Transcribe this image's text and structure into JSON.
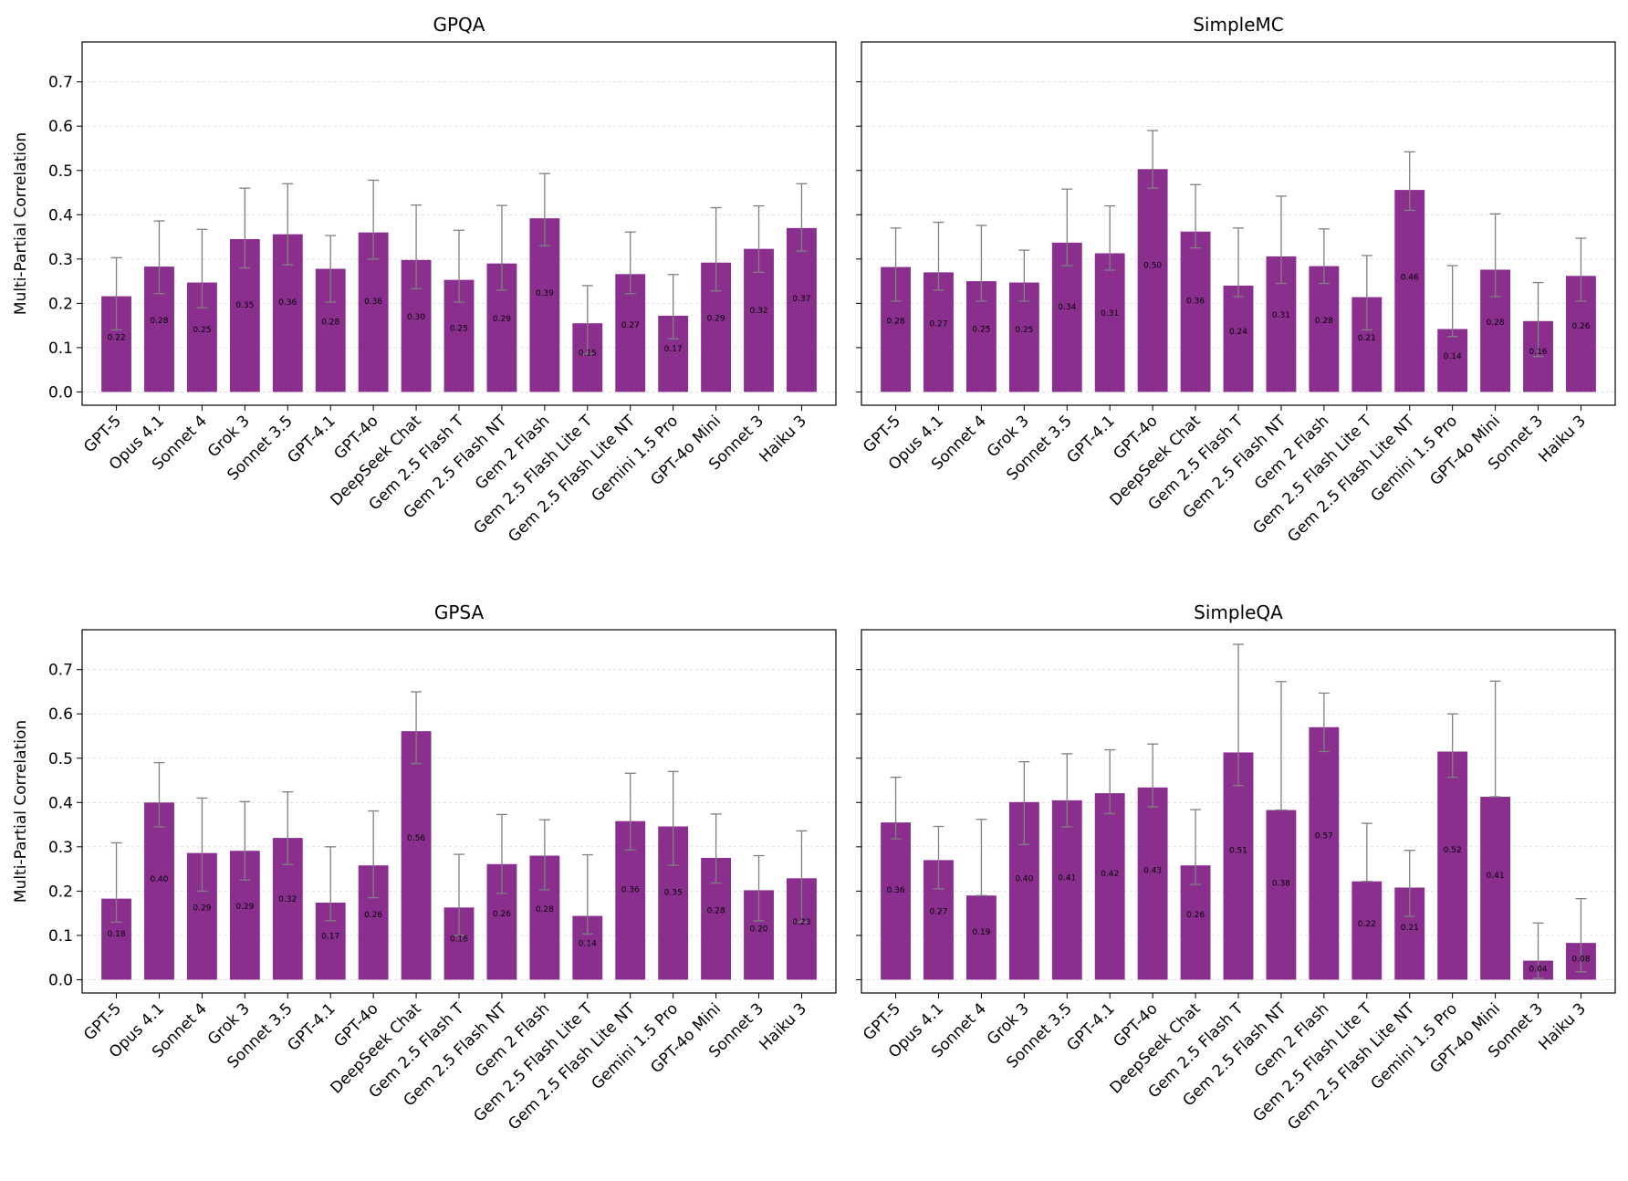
{
  "figure": {
    "shared_ylabel": "Multi-Partial Correlation",
    "bar_color": "#8b2f8f",
    "error_color": "#808080",
    "grid_color": "#d9d9d9"
  },
  "chart_data": [
    {
      "type": "bar",
      "title": "GPQA",
      "ylabel": "Multi-Partial Correlation",
      "xlabel": "",
      "ylim": [
        -0.03,
        0.79
      ],
      "yticks": [
        "0.0",
        "0.1",
        "0.2",
        "0.3",
        "0.4",
        "0.5",
        "0.6",
        "0.7"
      ],
      "grid": true,
      "categories": [
        "GPT-5",
        "Opus 4.1",
        "Sonnet 4",
        "Grok 3",
        "Sonnet 3.5",
        "GPT-4.1",
        "GPT-4o",
        "DeepSeek Chat",
        "Gem 2.5 Flash T",
        "Gem 2.5 Flash NT",
        "Gem 2 Flash",
        "Gem 2.5 Flash Lite T",
        "Gem 2.5 Flash Lite NT",
        "Gemini 1.5 Pro",
        "GPT-4o Mini",
        "Sonnet 3",
        "Haiku 3"
      ],
      "values": [
        0.216,
        0.283,
        0.247,
        0.345,
        0.356,
        0.278,
        0.36,
        0.298,
        0.253,
        0.29,
        0.392,
        0.155,
        0.266,
        0.172,
        0.292,
        0.323,
        0.37
      ],
      "labels": [
        "0.22",
        "0.28",
        "0.25",
        "0.35",
        "0.36",
        "0.28",
        "0.36",
        "0.30",
        "0.25",
        "0.29",
        "0.39",
        "0.15",
        "0.27",
        "0.17",
        "0.29",
        "0.32",
        "0.37"
      ],
      "err_low": [
        0.14,
        0.222,
        0.19,
        0.28,
        0.287,
        0.203,
        0.3,
        0.233,
        0.203,
        0.23,
        0.33,
        0.085,
        0.222,
        0.12,
        0.228,
        0.27,
        0.318
      ],
      "err_high": [
        0.303,
        0.386,
        0.367,
        0.46,
        0.47,
        0.353,
        0.478,
        0.422,
        0.365,
        0.421,
        0.493,
        0.24,
        0.361,
        0.265,
        0.416,
        0.42,
        0.47
      ]
    },
    {
      "type": "bar",
      "title": "SimpleMC",
      "ylabel": "",
      "xlabel": "",
      "ylim": [
        -0.03,
        0.79
      ],
      "yticks": [
        "0.0",
        "0.1",
        "0.2",
        "0.3",
        "0.4",
        "0.5",
        "0.6",
        "0.7"
      ],
      "grid": true,
      "categories": [
        "GPT-5",
        "Opus 4.1",
        "Sonnet 4",
        "Grok 3",
        "Sonnet 3.5",
        "GPT-4.1",
        "GPT-4o",
        "DeepSeek Chat",
        "Gem 2.5 Flash T",
        "Gem 2.5 Flash NT",
        "Gem 2 Flash",
        "Gem 2.5 Flash Lite T",
        "Gem 2.5 Flash Lite NT",
        "Gemini 1.5 Pro",
        "GPT-4o Mini",
        "Sonnet 3",
        "Haiku 3"
      ],
      "values": [
        0.282,
        0.27,
        0.25,
        0.247,
        0.337,
        0.313,
        0.503,
        0.362,
        0.24,
        0.306,
        0.284,
        0.214,
        0.456,
        0.142,
        0.276,
        0.16,
        0.262
      ],
      "labels": [
        "0.28",
        "0.27",
        "0.25",
        "0.25",
        "0.34",
        "0.31",
        "0.50",
        "0.36",
        "0.24",
        "0.31",
        "0.28",
        "0.21",
        "0.46",
        "0.14",
        "0.28",
        "0.16",
        "0.26"
      ],
      "err_low": [
        0.205,
        0.23,
        0.205,
        0.205,
        0.285,
        0.275,
        0.46,
        0.325,
        0.215,
        0.245,
        0.245,
        0.14,
        0.41,
        0.125,
        0.215,
        0.08,
        0.205
      ],
      "err_high": [
        0.37,
        0.383,
        0.376,
        0.32,
        0.458,
        0.42,
        0.59,
        0.468,
        0.37,
        0.442,
        0.368,
        0.308,
        0.542,
        0.285,
        0.402,
        0.247,
        0.347
      ]
    },
    {
      "type": "bar",
      "title": "GPSA",
      "ylabel": "Multi-Partial Correlation",
      "xlabel": "",
      "ylim": [
        -0.03,
        0.79
      ],
      "yticks": [
        "0.0",
        "0.1",
        "0.2",
        "0.3",
        "0.4",
        "0.5",
        "0.6",
        "0.7"
      ],
      "grid": true,
      "categories": [
        "GPT-5",
        "Opus 4.1",
        "Sonnet 4",
        "Grok 3",
        "Sonnet 3.5",
        "GPT-4.1",
        "GPT-4o",
        "DeepSeek Chat",
        "Gem 2.5 Flash T",
        "Gem 2.5 Flash NT",
        "Gem 2 Flash",
        "Gem 2.5 Flash Lite T",
        "Gem 2.5 Flash Lite NT",
        "Gemini 1.5 Pro",
        "GPT-4o Mini",
        "Sonnet 3",
        "Haiku 3"
      ],
      "values": [
        0.183,
        0.4,
        0.286,
        0.291,
        0.32,
        0.174,
        0.258,
        0.561,
        0.163,
        0.261,
        0.28,
        0.144,
        0.358,
        0.346,
        0.275,
        0.202,
        0.229
      ],
      "labels": [
        "0.18",
        "0.40",
        "0.29",
        "0.29",
        "0.32",
        "0.17",
        "0.26",
        "0.56",
        "0.16",
        "0.26",
        "0.28",
        "0.14",
        "0.36",
        "0.35",
        "0.28",
        "0.20",
        "0.23"
      ],
      "err_low": [
        0.13,
        0.345,
        0.2,
        0.225,
        0.26,
        0.133,
        0.185,
        0.488,
        0.1,
        0.195,
        0.203,
        0.103,
        0.293,
        0.258,
        0.218,
        0.133,
        0.13
      ],
      "err_high": [
        0.309,
        0.49,
        0.41,
        0.402,
        0.424,
        0.3,
        0.381,
        0.65,
        0.283,
        0.373,
        0.361,
        0.282,
        0.466,
        0.47,
        0.374,
        0.28,
        0.336
      ]
    },
    {
      "type": "bar",
      "title": "SimpleQA",
      "ylabel": "",
      "xlabel": "",
      "ylim": [
        -0.03,
        0.79
      ],
      "yticks": [
        "0.0",
        "0.1",
        "0.2",
        "0.3",
        "0.4",
        "0.5",
        "0.6",
        "0.7"
      ],
      "grid": true,
      "categories": [
        "GPT-5",
        "Opus 4.1",
        "Sonnet 4",
        "Grok 3",
        "Sonnet 3.5",
        "GPT-4.1",
        "GPT-4o",
        "DeepSeek Chat",
        "Gem 2.5 Flash T",
        "Gem 2.5 Flash NT",
        "Gem 2 Flash",
        "Gem 2.5 Flash Lite T",
        "Gem 2.5 Flash Lite NT",
        "Gemini 1.5 Pro",
        "GPT-4o Mini",
        "Sonnet 3",
        "Haiku 3"
      ],
      "values": [
        0.355,
        0.27,
        0.19,
        0.401,
        0.405,
        0.421,
        0.434,
        0.258,
        0.513,
        0.383,
        0.57,
        0.222,
        0.208,
        0.515,
        0.413,
        0.043,
        0.083
      ],
      "labels": [
        "0.36",
        "0.27",
        "0.19",
        "0.40",
        "0.41",
        "0.42",
        "0.43",
        "0.26",
        "0.51",
        "0.38",
        "0.57",
        "0.22",
        "0.21",
        "0.52",
        "0.41",
        "0.04",
        "0.08"
      ],
      "err_low": [
        0.318,
        0.205,
        0.19,
        0.305,
        0.345,
        0.375,
        0.39,
        0.215,
        0.438,
        0.383,
        0.515,
        0.222,
        0.143,
        0.457,
        0.413,
        0.003,
        0.018
      ],
      "err_high": [
        0.457,
        0.346,
        0.362,
        0.492,
        0.51,
        0.519,
        0.532,
        0.384,
        0.757,
        0.673,
        0.647,
        0.353,
        0.292,
        0.6,
        0.674,
        0.128,
        0.183
      ]
    }
  ]
}
